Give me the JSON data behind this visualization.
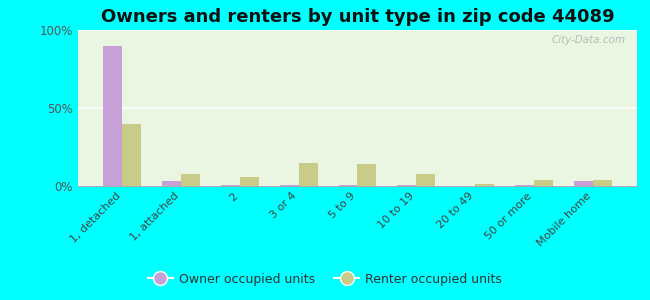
{
  "title": "Owners and renters by unit type in zip code 44089",
  "categories": [
    "1, detached",
    "1, attached",
    "2",
    "3 or 4",
    "5 to 9",
    "10 to 19",
    "20 to 49",
    "50 or more",
    "Mobile home"
  ],
  "owner_values": [
    90,
    3,
    0.5,
    0.5,
    0.5,
    0.5,
    0.3,
    0.5,
    3
  ],
  "renter_values": [
    40,
    8,
    6,
    15,
    14,
    8,
    1.5,
    4,
    4
  ],
  "owner_color": "#c8a0d8",
  "renter_color": "#c8cc88",
  "background_color": "#00ffff",
  "plot_bg": "#eaf5e2",
  "ylim": [
    0,
    100
  ],
  "yticks": [
    0,
    50,
    100
  ],
  "ytick_labels": [
    "0%",
    "50%",
    "100%"
  ],
  "title_fontsize": 13,
  "watermark": "City-Data.com",
  "legend_owner": "Owner occupied units",
  "legend_renter": "Renter occupied units"
}
